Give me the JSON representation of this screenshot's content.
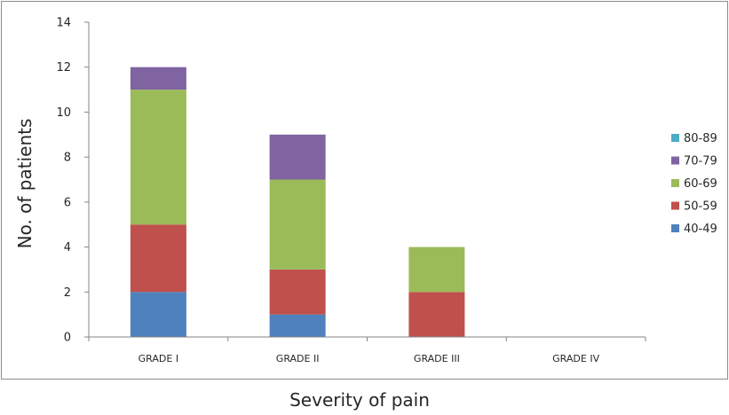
{
  "chart_data": {
    "type": "bar",
    "stacked": true,
    "title": "",
    "xlabel": "Severity of pain",
    "ylabel": "No. of patients",
    "categories": [
      "GRADE I",
      "GRADE II",
      "GRADE III",
      "GRADE IV"
    ],
    "ylim": [
      0,
      14
    ],
    "yticks": [
      0,
      2,
      4,
      6,
      8,
      10,
      12,
      14
    ],
    "grid": false,
    "legend_position": "right",
    "series": [
      {
        "name": "40-49",
        "color": "#4F81BD",
        "values": [
          2,
          1,
          0,
          0
        ]
      },
      {
        "name": "50-59",
        "color": "#C0504D",
        "values": [
          3,
          2,
          2,
          0
        ]
      },
      {
        "name": "60-69",
        "color": "#9BBB59",
        "values": [
          6,
          4,
          2,
          0
        ]
      },
      {
        "name": "70-79",
        "color": "#8064A2",
        "values": [
          1,
          2,
          0,
          0
        ]
      },
      {
        "name": "80-89",
        "color": "#4BACC6",
        "values": [
          0,
          0,
          0,
          0
        ]
      }
    ]
  }
}
